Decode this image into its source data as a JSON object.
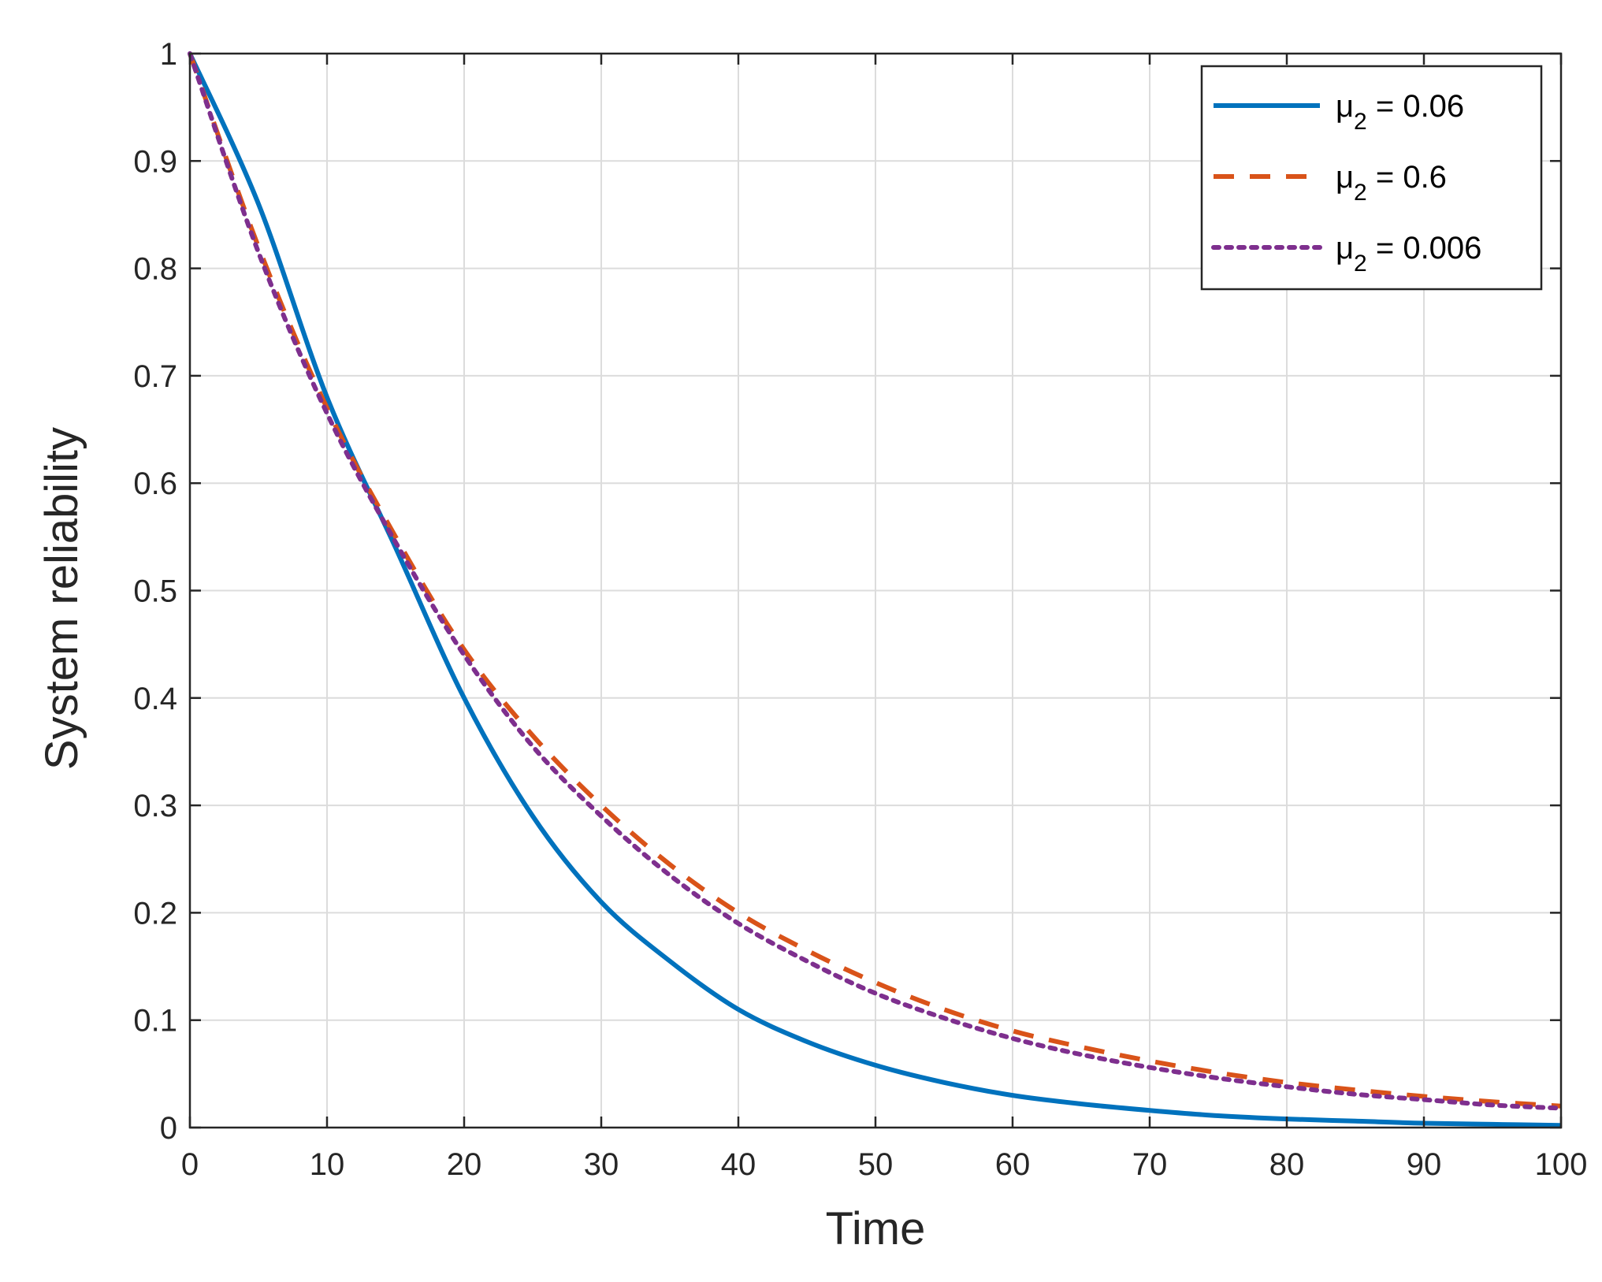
{
  "chart_data": {
    "type": "line",
    "title": "",
    "xlabel": "Time",
    "ylabel": "System reliability",
    "xlim": [
      0,
      100
    ],
    "ylim": [
      0,
      1
    ],
    "xticks": [
      0,
      10,
      20,
      30,
      40,
      50,
      60,
      70,
      80,
      90,
      100
    ],
    "yticks": [
      0,
      0.1,
      0.2,
      0.3,
      0.4,
      0.5,
      0.6,
      0.7,
      0.8,
      0.9,
      1
    ],
    "grid": true,
    "legend_position": "top-right",
    "x": [
      0,
      5,
      10,
      15,
      20,
      25,
      30,
      35,
      40,
      45,
      50,
      55,
      60,
      65,
      70,
      75,
      80,
      85,
      90,
      95,
      100
    ],
    "series": [
      {
        "name": "μ2 = 0.06",
        "legend_base": "μ",
        "legend_sub": "2",
        "legend_rest": " = 0.06",
        "color": "#0072BD",
        "style": "solid",
        "values": [
          1.0,
          0.86,
          0.68,
          0.54,
          0.4,
          0.29,
          0.21,
          0.155,
          0.11,
          0.08,
          0.058,
          0.042,
          0.03,
          0.022,
          0.016,
          0.011,
          0.008,
          0.006,
          0.004,
          0.003,
          0.002
        ]
      },
      {
        "name": "μ2 = 0.6",
        "legend_base": "μ",
        "legend_sub": "2",
        "legend_rest": " = 0.6",
        "color": "#D95319",
        "style": "dashed",
        "values": [
          1.0,
          0.82,
          0.67,
          0.55,
          0.445,
          0.365,
          0.3,
          0.245,
          0.2,
          0.165,
          0.135,
          0.11,
          0.09,
          0.075,
          0.062,
          0.051,
          0.042,
          0.035,
          0.029,
          0.024,
          0.02
        ]
      },
      {
        "name": "μ2 = 0.006",
        "legend_base": "μ",
        "legend_sub": "2",
        "legend_rest": " = 0.006",
        "color": "#7E2F8E",
        "style": "dotted",
        "values": [
          1.0,
          0.815,
          0.665,
          0.545,
          0.44,
          0.355,
          0.29,
          0.235,
          0.19,
          0.155,
          0.125,
          0.102,
          0.083,
          0.068,
          0.056,
          0.046,
          0.038,
          0.031,
          0.026,
          0.021,
          0.018
        ]
      }
    ]
  }
}
